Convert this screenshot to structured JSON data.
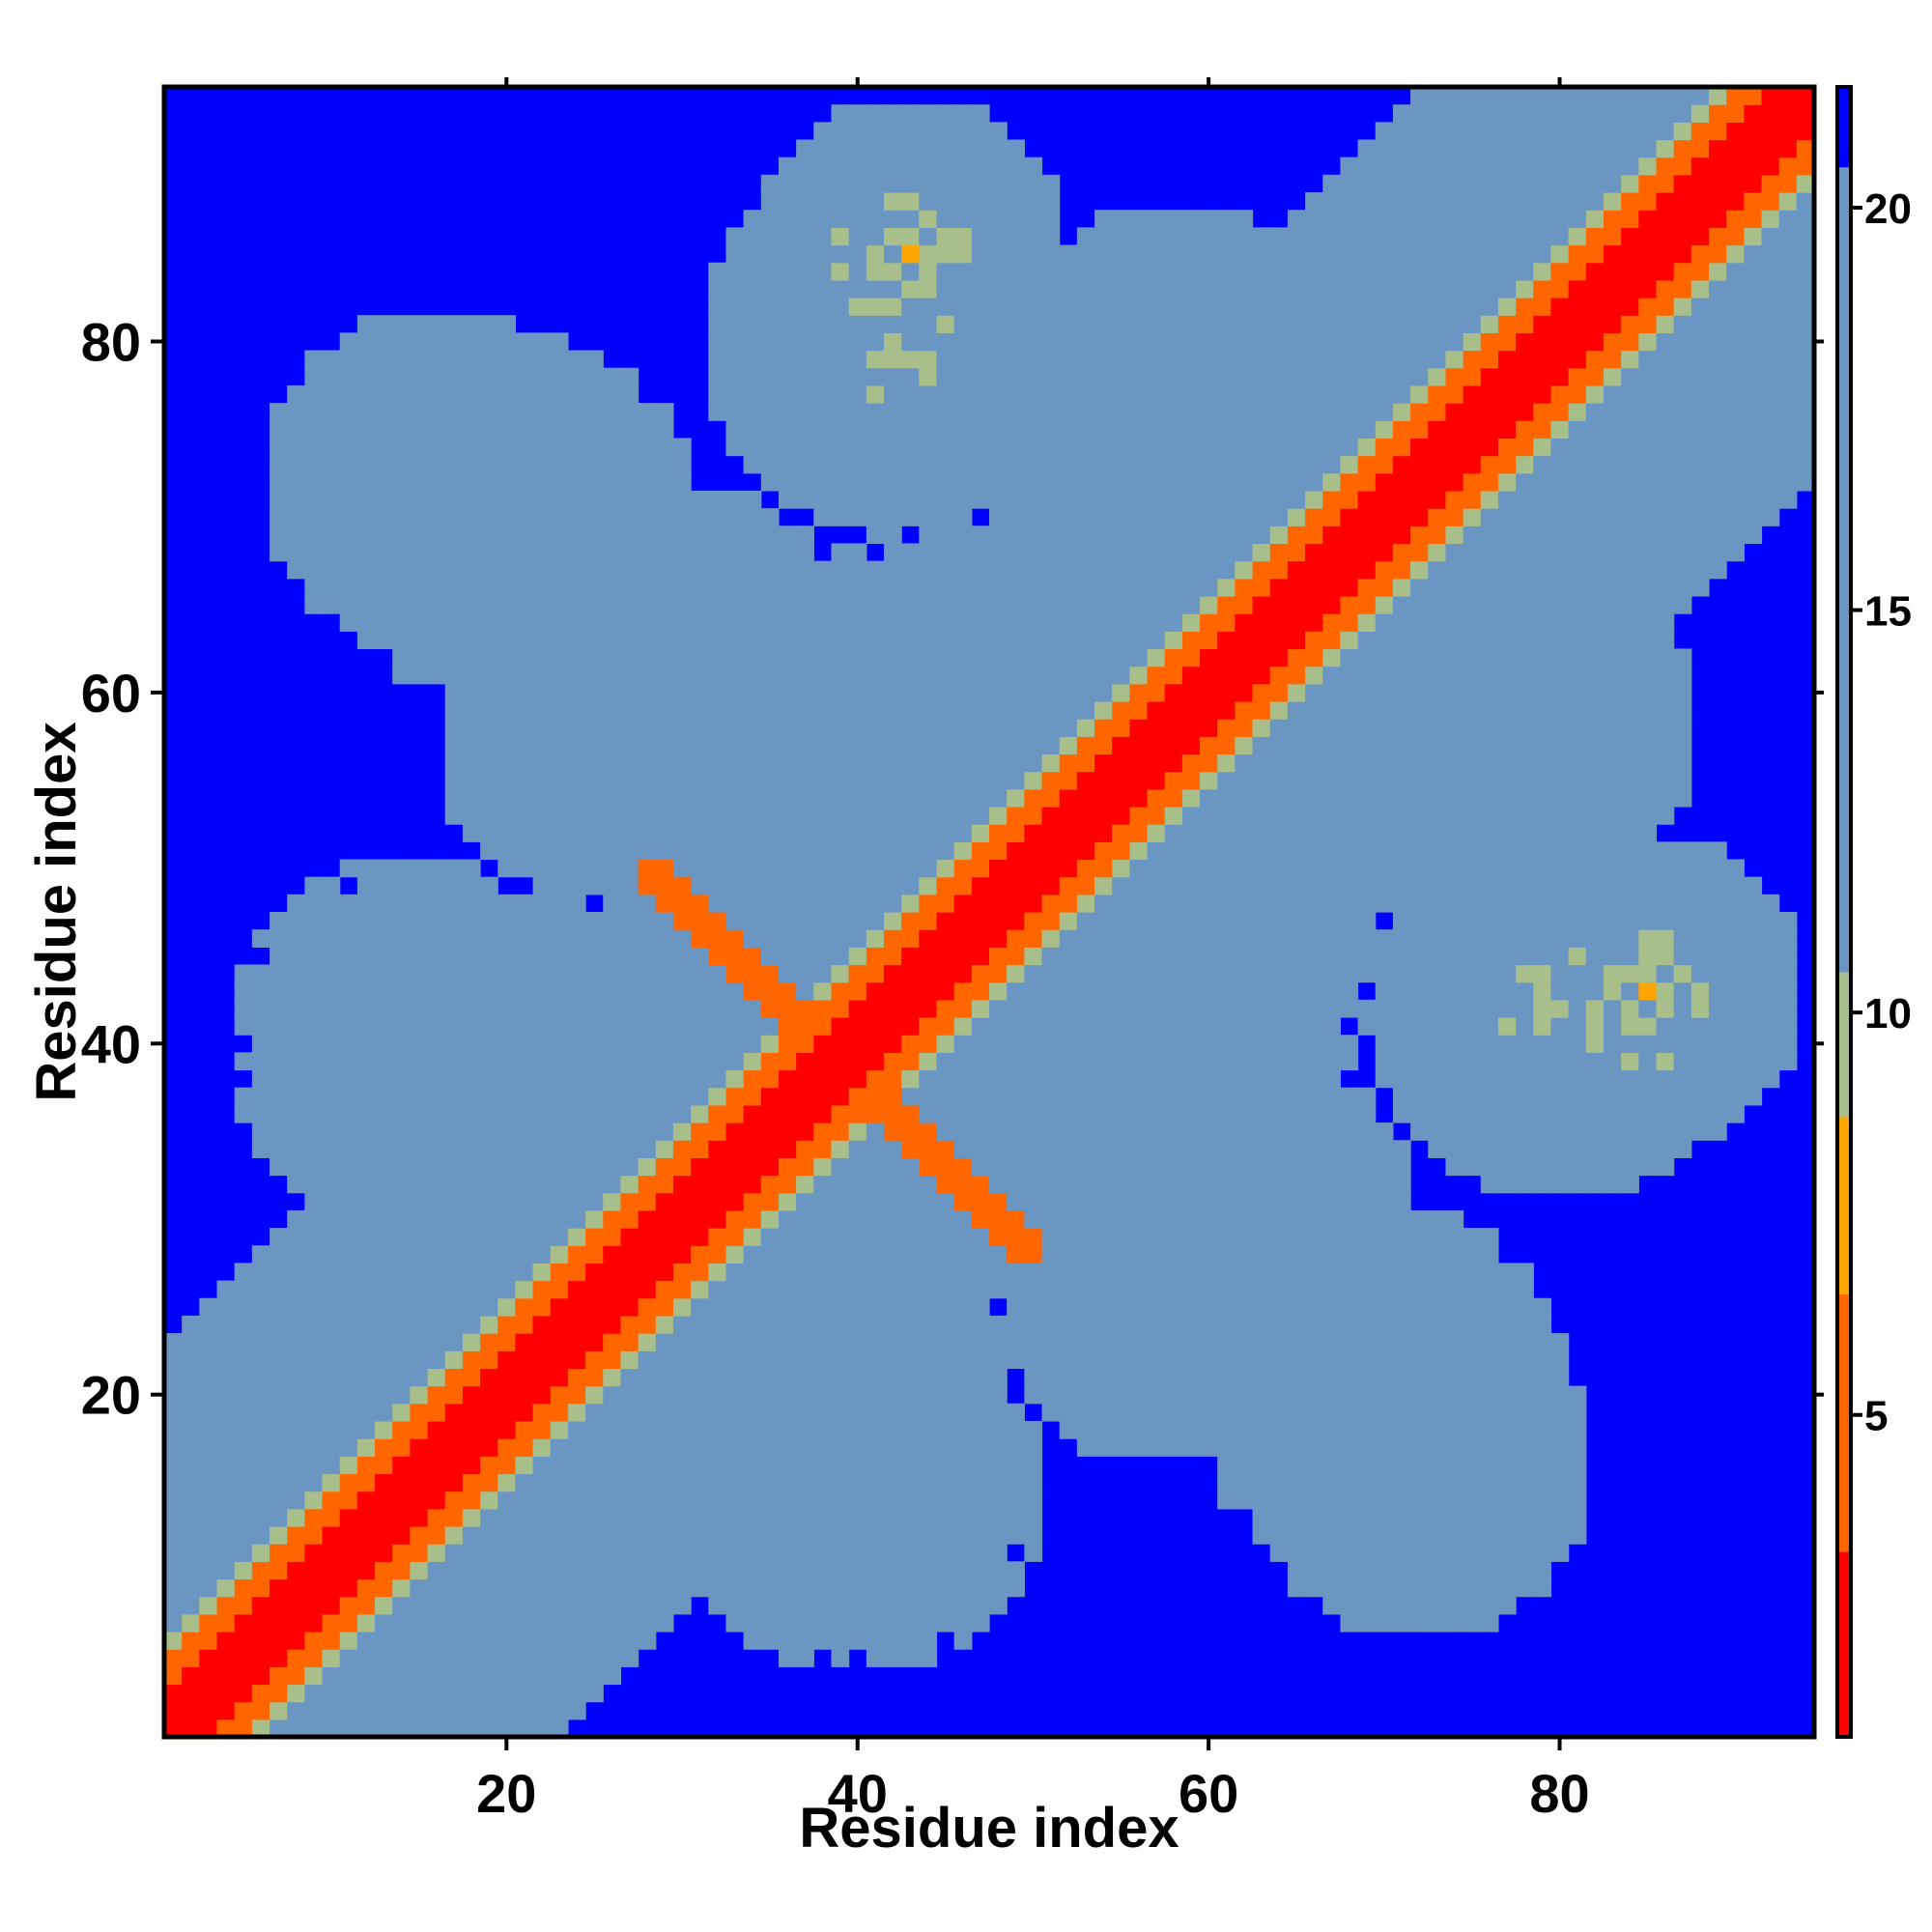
{
  "chart_data": {
    "type": "heatmap",
    "title": "",
    "xlabel": "Residue index",
    "ylabel": "Residue index",
    "x_range": [
      1,
      94
    ],
    "y_range": [
      1,
      94
    ],
    "x_ticks": [
      20,
      40,
      60,
      80
    ],
    "y_ticks": [
      20,
      40,
      60,
      80
    ],
    "colorbar": {
      "range": [
        1,
        21.5
      ],
      "ticks": [
        5,
        10,
        15,
        20
      ],
      "colors": {
        "near": "#ff0000",
        "close": "#ff6600",
        "mid": "#ffa500",
        "medium": "#a8bf8c",
        "far": "#6b96c2",
        "beyond": "#0000ff"
      },
      "breakpoints": [
        1,
        3.3,
        6.5,
        8.7,
        10.5,
        20.5,
        21.5
      ]
    },
    "symmetric": true,
    "features": [
      {
        "name": "main-diagonal",
        "from": [
          1,
          1
        ],
        "to": [
          94,
          94
        ],
        "distance": 1
      },
      {
        "name": "antiparallel-contact",
        "from": [
          28,
          50
        ],
        "to": [
          49,
          28
        ],
        "distance": 6
      },
      {
        "name": "contact-cluster",
        "at": [
          43,
          85
        ],
        "distance": 6
      },
      {
        "name": "contact-cluster",
        "at": [
          80,
          42
        ],
        "distance": 6
      },
      {
        "name": "contact-cluster",
        "at": [
          75,
          75
        ],
        "distance": 6
      }
    ],
    "grid": false,
    "legend": "colorbar-right"
  }
}
